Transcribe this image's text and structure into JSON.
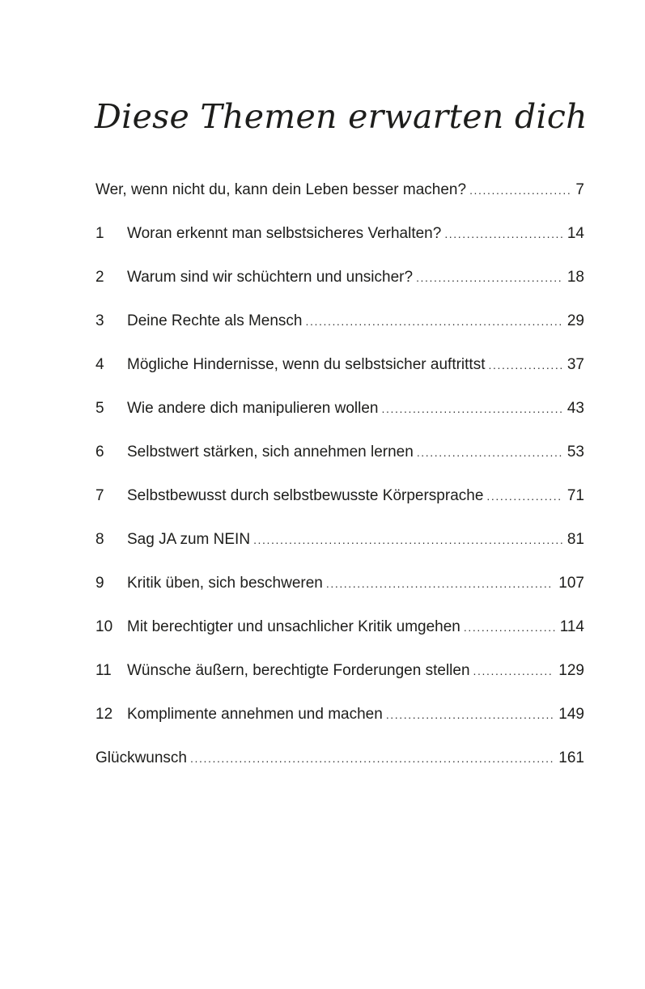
{
  "title": "Diese Themen erwarten dich",
  "entries": [
    {
      "number": "",
      "text": "Wer, wenn nicht du, kann dein Leben besser machen?",
      "page": "7"
    },
    {
      "number": "1",
      "text": "Woran erkennt man selbstsicheres Verhalten?",
      "page": "14"
    },
    {
      "number": "2",
      "text": "Warum sind wir schüchtern und unsicher?",
      "page": "18"
    },
    {
      "number": "3",
      "text": "Deine Rechte als Mensch",
      "page": "29"
    },
    {
      "number": "4",
      "text": "Mögliche Hindernisse, wenn du selbstsicher auftrittst",
      "page": "37"
    },
    {
      "number": "5",
      "text": "Wie andere dich manipulieren wollen",
      "page": "43"
    },
    {
      "number": "6",
      "text": "Selbstwert stärken, sich annehmen lernen",
      "page": "53"
    },
    {
      "number": "7",
      "text": "Selbstbewusst durch selbstbewusste Körpersprache",
      "page": "71"
    },
    {
      "number": "8",
      "text": "Sag JA zum NEIN",
      "page": "81"
    },
    {
      "number": "9",
      "text": "Kritik üben, sich beschweren",
      "page": "107"
    },
    {
      "number": "10",
      "text": "Mit berechtigter und unsachlicher Kritik umgehen",
      "page": "114"
    },
    {
      "number": "11",
      "text": "Wünsche äußern, berechtigte Forderungen stellen",
      "page": "129"
    },
    {
      "number": "12",
      "text": "Komplimente annehmen und machen",
      "page": "149"
    },
    {
      "number": "",
      "text": "Glückwunsch",
      "page": "161"
    }
  ]
}
